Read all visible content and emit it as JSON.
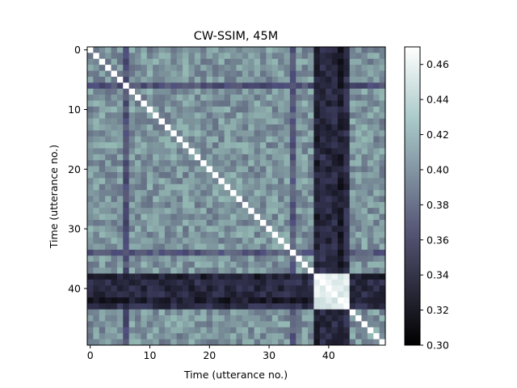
{
  "chart_data": {
    "type": "heatmap",
    "title": "CW-SSIM, 45M",
    "xlabel": "Time (utterance no.)",
    "ylabel": "Time (utterance no.)",
    "size": 50,
    "x_ticks": [
      0,
      10,
      20,
      30,
      40
    ],
    "y_ticks": [
      0,
      10,
      20,
      30,
      40
    ],
    "colormap": "bone",
    "vmin": 0.3,
    "vmax": 0.47,
    "colorbar_ticks": [
      "0.30",
      "0.32",
      "0.34",
      "0.36",
      "0.38",
      "0.40",
      "0.42",
      "0.44",
      "0.46"
    ],
    "diagonal_value": 0.47,
    "typical_value": 0.395,
    "structure": {
      "dark_rows_cols": [
        {
          "index": 6,
          "value": 0.36
        },
        {
          "index": 34,
          "value": 0.365
        },
        {
          "index": 38,
          "value": 0.325
        },
        {
          "index": 39,
          "value": 0.335
        },
        {
          "index": 40,
          "value": 0.33
        },
        {
          "index": 41,
          "value": 0.332
        },
        {
          "index": 42,
          "value": 0.322
        },
        {
          "index": 43,
          "value": 0.335
        }
      ],
      "bright_block": {
        "start": 38,
        "end": 43,
        "value": 0.455
      }
    }
  }
}
